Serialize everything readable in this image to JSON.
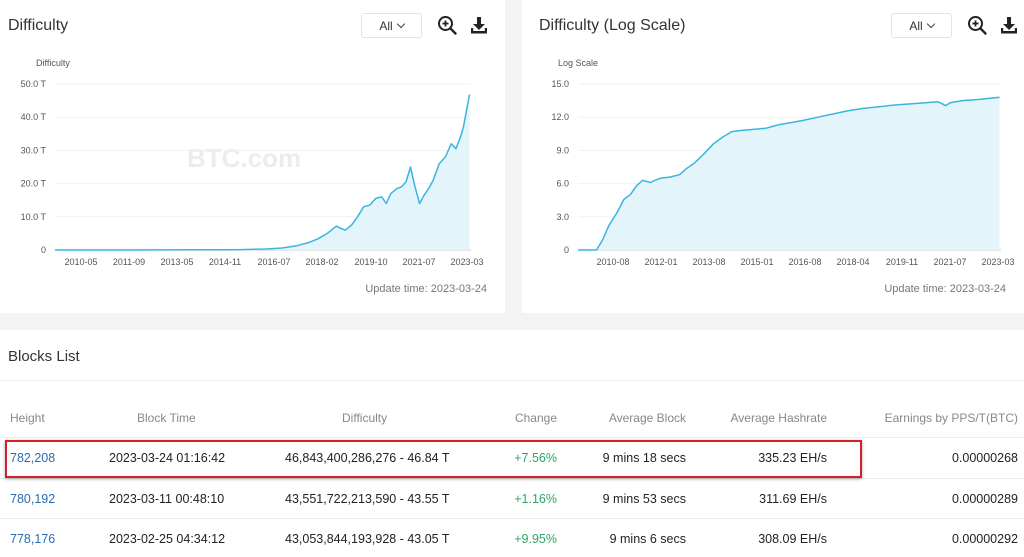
{
  "colors": {
    "line": "#3ab5de",
    "area": "#e3f4fb",
    "link": "#2a6bb0",
    "positive": "#2fa468",
    "highlight": "#d42027"
  },
  "left_panel": {
    "title": "Difficulty",
    "range": "All",
    "zoom_icon": "zoom-in-icon",
    "download_icon": "download-icon",
    "update_time": "Update time: 2023-03-24",
    "watermark": "BTC.com"
  },
  "right_panel": {
    "title": "Difficulty (Log Scale)",
    "range": "All",
    "zoom_icon": "zoom-in-icon",
    "download_icon": "download-icon",
    "update_time": "Update time: 2023-03-24",
    "watermark": "BTC.com"
  },
  "chart_data": [
    {
      "type": "area",
      "title": "Difficulty",
      "ylabel": "Difficulty",
      "ylim": [
        0,
        50
      ],
      "ytick_labels": [
        "0",
        "10.0 T",
        "20.0 T",
        "30.0 T",
        "40.0 T",
        "50.0 T"
      ],
      "ytick_values": [
        0,
        10,
        20,
        30,
        40,
        50
      ],
      "xtick_labels": [
        "2010-05",
        "2011-09",
        "2013-05",
        "2014-11",
        "2016-07",
        "2018-02",
        "2019-10",
        "2021-07",
        "2023-03"
      ],
      "xlim": [
        2009.5,
        2023.25
      ],
      "series": [
        {
          "x": [
            2009.5,
            2012.0,
            2014.0,
            2015.5,
            2016.5,
            2017.0,
            2017.5,
            2017.9,
            2018.2,
            2018.5,
            2018.8,
            2018.95,
            2019.1,
            2019.3,
            2019.5,
            2019.7,
            2019.9,
            2020.1,
            2020.3,
            2020.45,
            2020.6,
            2020.8,
            2020.95,
            2021.1,
            2021.25,
            2021.4,
            2021.55,
            2021.7,
            2021.85,
            2022.0,
            2022.2,
            2022.4,
            2022.6,
            2022.75,
            2022.9,
            2023.0,
            2023.1,
            2023.2
          ],
          "y": [
            0,
            0,
            0.05,
            0.1,
            0.3,
            0.6,
            1.3,
            2.3,
            3.4,
            5.0,
            7.2,
            6.5,
            6.0,
            7.5,
            10.0,
            13.0,
            13.5,
            15.5,
            16.0,
            14.0,
            17.0,
            18.5,
            19.0,
            20.5,
            25.0,
            19.0,
            14.0,
            16.5,
            18.5,
            21.0,
            26.0,
            28.0,
            32.0,
            30.5,
            34.0,
            37.0,
            42.0,
            46.84
          ]
        }
      ]
    },
    {
      "type": "area",
      "title": "Difficulty (Log Scale)",
      "ylabel": "Log Scale",
      "ylim": [
        0,
        15
      ],
      "ytick_labels": [
        "0",
        "3.0",
        "6.0",
        "9.0",
        "12.0",
        "15.0"
      ],
      "ytick_values": [
        0,
        3,
        6,
        9,
        12,
        15
      ],
      "xtick_labels": [
        "2010-08",
        "2012-01",
        "2013-08",
        "2015-01",
        "2016-08",
        "2018-04",
        "2019-11",
        "2021-07",
        "2023-03"
      ],
      "xlim": [
        2009.5,
        2023.25
      ],
      "series": [
        {
          "x": [
            2009.5,
            2010.1,
            2010.3,
            2010.5,
            2010.75,
            2011.0,
            2011.2,
            2011.4,
            2011.6,
            2011.85,
            2012.0,
            2012.2,
            2012.5,
            2012.8,
            2013.0,
            2013.3,
            2013.6,
            2013.9,
            2014.2,
            2014.5,
            2014.8,
            2015.2,
            2015.6,
            2016.0,
            2016.4,
            2016.8,
            2017.3,
            2017.8,
            2018.3,
            2018.8,
            2019.3,
            2019.8,
            2020.3,
            2020.8,
            2021.2,
            2021.45,
            2021.6,
            2022.0,
            2022.5,
            2023.2
          ],
          "y": [
            0,
            0,
            0.9,
            2.2,
            3.3,
            4.6,
            5.0,
            5.8,
            6.3,
            6.1,
            6.3,
            6.5,
            6.6,
            6.8,
            7.3,
            7.9,
            8.7,
            9.6,
            10.2,
            10.7,
            10.8,
            10.9,
            11.0,
            11.3,
            11.5,
            11.7,
            12.0,
            12.3,
            12.6,
            12.8,
            12.95,
            13.1,
            13.2,
            13.3,
            13.4,
            13.05,
            13.3,
            13.5,
            13.6,
            13.8
          ]
        }
      ]
    }
  ],
  "blocks": {
    "title": "Blocks List",
    "headers": {
      "height": "Height",
      "block_time": "Block Time",
      "difficulty": "Difficulty",
      "change": "Change",
      "average_block": "Average Block",
      "average_hashrate": "Average Hashrate",
      "earnings": "Earnings by PPS/T(BTC)"
    },
    "rows": [
      {
        "height": "782,208",
        "block_time": "2023-03-24 01:16:42",
        "difficulty": "46,843,400,286,276 - 46.84 T",
        "change": "+7.56%",
        "average_block": "9 mins 18 secs",
        "average_hashrate": "335.23 EH/s",
        "earnings": "0.00000268"
      },
      {
        "height": "780,192",
        "block_time": "2023-03-11 00:48:10",
        "difficulty": "43,551,722,213,590 - 43.55 T",
        "change": "+1.16%",
        "average_block": "9 mins 53 secs",
        "average_hashrate": "311.69 EH/s",
        "earnings": "0.00000289"
      },
      {
        "height": "778,176",
        "block_time": "2023-02-25 04:34:12",
        "difficulty": "43,053,844,193,928 - 43.05 T",
        "change": "+9.95%",
        "average_block": "9 mins 6 secs",
        "average_hashrate": "308.09 EH/s",
        "earnings": "0.00000292"
      }
    ]
  }
}
